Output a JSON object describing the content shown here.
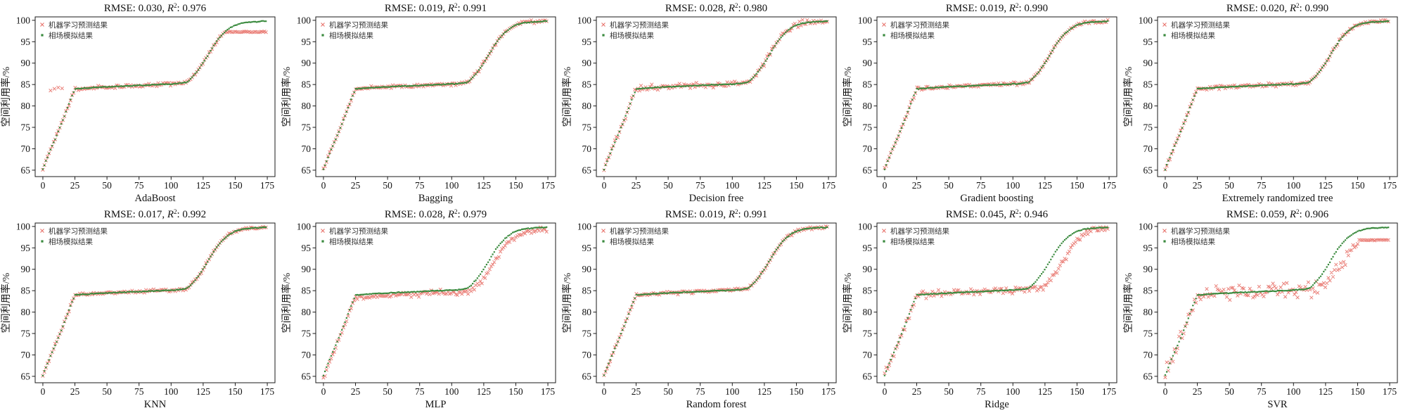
{
  "page": {
    "background": "#ffffff"
  },
  "colors": {
    "ml_marker": "#e8736c",
    "pf_marker": "#3a8a3e",
    "frame": "#1a1a1a",
    "tick_text": "#111111",
    "legend_text": "#333333"
  },
  "labels": {
    "rmse_prefix": "RMSE",
    "r_symbol": "R",
    "r_exponent": "2",
    "ylabel": "空间利用率/%"
  },
  "legend": {
    "ml_label": "机器学习预测结果",
    "pf_label": "相场模拟结果"
  },
  "chart_data": {
    "type": "scatter",
    "layout": "2x5 grid",
    "title": "",
    "ylabel": "空间利用率/%",
    "xlabel_per_subplot": true,
    "x_ticks": [
      0,
      25,
      50,
      75,
      100,
      125,
      150,
      175
    ],
    "y_ticks": [
      65,
      70,
      75,
      80,
      85,
      90,
      95,
      100
    ],
    "xlim": [
      -6,
      181
    ],
    "ylim": [
      63.5,
      100.8
    ],
    "grid": false,
    "legend_position": "upper-left-inside",
    "legend_entries": [
      {
        "label": "机器学习预测结果",
        "marker": "x",
        "color": "#e8736c"
      },
      {
        "label": "相场模拟结果",
        "marker": "dot",
        "color": "#3a8a3e"
      }
    ],
    "base_curve": [
      [
        0,
        65.2
      ],
      [
        2,
        66.8
      ],
      [
        4,
        68.3
      ],
      [
        6,
        69.8
      ],
      [
        8,
        71.2
      ],
      [
        10,
        72.5
      ],
      [
        12,
        74.0
      ],
      [
        14,
        75.5
      ],
      [
        16,
        77.0
      ],
      [
        18,
        78.6
      ],
      [
        20,
        80.2
      ],
      [
        22,
        81.8
      ],
      [
        24,
        83.2
      ],
      [
        25,
        84.0
      ],
      [
        35,
        84.2
      ],
      [
        45,
        84.4
      ],
      [
        60,
        84.6
      ],
      [
        75,
        84.8
      ],
      [
        90,
        85.0
      ],
      [
        105,
        85.2
      ],
      [
        112,
        85.5
      ],
      [
        115,
        86.2
      ],
      [
        118,
        87.2
      ],
      [
        121,
        88.3
      ],
      [
        124,
        89.6
      ],
      [
        127,
        91.0
      ],
      [
        130,
        92.5
      ],
      [
        133,
        94.0
      ],
      [
        136,
        95.3
      ],
      [
        139,
        96.4
      ],
      [
        142,
        97.3
      ],
      [
        145,
        98.0
      ],
      [
        148,
        98.6
      ],
      [
        151,
        99.0
      ],
      [
        156,
        99.4
      ],
      [
        162,
        99.6
      ],
      [
        168,
        99.7
      ],
      [
        174,
        99.8
      ]
    ],
    "x_start": 0,
    "x_end": 174,
    "x_step": 1.2,
    "green_noise": 0.12,
    "subplots": [
      {
        "xlabel": "AdaBoost",
        "title": "RMSE: 0.030, R²: 0.976",
        "rmse": "0.030",
        "r2": "0.976",
        "red": {
          "noise": 0.5,
          "cap": 97.3,
          "outliers": [
            [
              6,
              83.6
            ],
            [
              9,
              84.0
            ],
            [
              12,
              84.3
            ],
            [
              15,
              84.1
            ]
          ]
        }
      },
      {
        "xlabel": "Bagging",
        "title": "RMSE: 0.019, R²: 0.991",
        "rmse": "0.019",
        "r2": "0.991",
        "red": {
          "noise": 0.45
        }
      },
      {
        "xlabel": "Decision free",
        "title": "RMSE: 0.028, R²: 0.980",
        "rmse": "0.028",
        "r2": "0.980",
        "red": {
          "noise": 0.75
        }
      },
      {
        "xlabel": "Gradient boosting",
        "title": "RMSE: 0.019, R²: 0.990",
        "rmse": "0.019",
        "r2": "0.990",
        "red": {
          "noise": 0.45
        }
      },
      {
        "xlabel": "Extremely randomized tree",
        "title": "RMSE: 0.020, R²: 0.990",
        "rmse": "0.020",
        "r2": "0.990",
        "red": {
          "noise": 0.5
        }
      },
      {
        "xlabel": "KNN",
        "title": "RMSE: 0.017, R²: 0.992",
        "rmse": "0.017",
        "r2": "0.992",
        "red": {
          "noise": 0.4
        }
      },
      {
        "xlabel": "MLP",
        "title": "RMSE: 0.028, R²: 0.979",
        "rmse": "0.028",
        "r2": "0.979",
        "red": {
          "noise": 0.75,
          "offset": -0.5,
          "xshift": 4
        }
      },
      {
        "xlabel": "Random forest",
        "title": "RMSE: 0.019, R²: 0.991",
        "rmse": "0.019",
        "r2": "0.991",
        "red": {
          "noise": 0.45
        }
      },
      {
        "xlabel": "Ridge",
        "title": "RMSE: 0.045, R²: 0.946",
        "rmse": "0.045",
        "r2": "0.946",
        "red": {
          "noise": 1.1,
          "xshift": 10
        }
      },
      {
        "xlabel": "SVR",
        "title": "RMSE: 0.059, R²: 0.906",
        "rmse": "0.059",
        "r2": "0.906",
        "red": {
          "noise": 2.2,
          "xshift": 10,
          "cap": 96.8
        }
      }
    ]
  }
}
